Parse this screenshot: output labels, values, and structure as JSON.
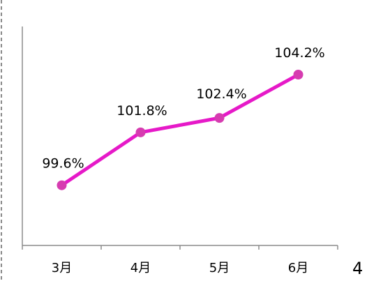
{
  "chart_data": {
    "type": "line",
    "categories": [
      "3月",
      "4月",
      "5月",
      "6月"
    ],
    "series": [
      {
        "values": [
          99.6,
          101.8,
          102.4,
          104.2
        ],
        "labels": [
          "99.6%",
          "101.8%",
          "102.4%",
          "104.2%"
        ],
        "color": "#E619C8",
        "marker_color": "#D63CB0"
      }
    ],
    "ylim": [
      97.1,
      106.2
    ],
    "grid": false,
    "legend": false,
    "axis_color": "#8c8c8c",
    "frame_color": "#8a8a8a"
  },
  "page": {
    "number": "4"
  }
}
